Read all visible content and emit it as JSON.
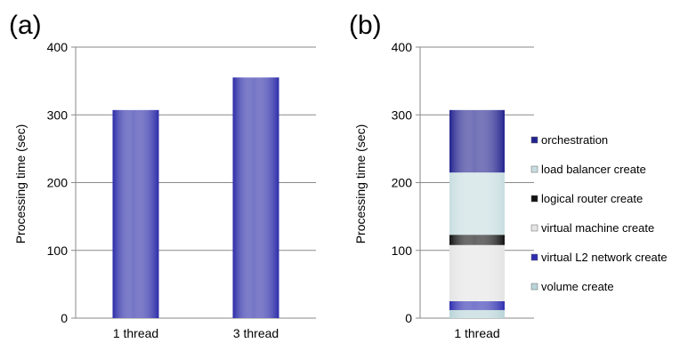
{
  "chart_data": [
    {
      "type": "bar",
      "panel_label": "(a)",
      "categories": [
        "1 thread",
        "3 thread"
      ],
      "values": [
        307,
        355
      ],
      "ylabel": "Processing time (sec)",
      "yticks": [
        "0",
        "100",
        "200",
        "300",
        "400"
      ],
      "ylim": [
        0,
        400
      ],
      "grid": true,
      "bar_color": "#2b2ba8"
    },
    {
      "type": "stacked-bar",
      "panel_label": "(b)",
      "categories": [
        "1 thread"
      ],
      "ylabel": "Processing time (sec)",
      "yticks": [
        "0",
        "100",
        "200",
        "300",
        "400"
      ],
      "ylim": [
        0,
        400
      ],
      "grid": true,
      "legend_position": "right",
      "series": [
        {
          "name": "volume create",
          "values": [
            12
          ],
          "color": "#b8d4d8"
        },
        {
          "name": "virtual L2 network create",
          "values": [
            13
          ],
          "color": "#2e2eb0"
        },
        {
          "name": "virtual machine create",
          "values": [
            83
          ],
          "color": "#e4e4e4"
        },
        {
          "name": "logical router create",
          "values": [
            15
          ],
          "color": "#111111"
        },
        {
          "name": "load balancer create",
          "values": [
            92
          ],
          "color": "#c7dde0"
        },
        {
          "name": "orchestration",
          "values": [
            92
          ],
          "color": "#23238f"
        }
      ]
    }
  ]
}
